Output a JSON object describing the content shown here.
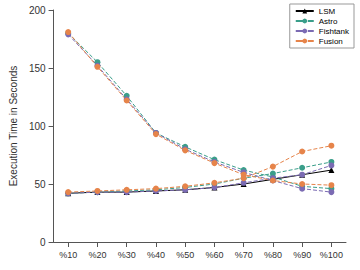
{
  "chart_data": {
    "type": "line",
    "y_label": "Execution Time in Seconds",
    "categories": [
      "%10",
      "%20",
      "%30",
      "%40",
      "%50",
      "%60",
      "%70",
      "%80",
      "%90",
      "%100"
    ],
    "series": [
      {
        "name": "LSM",
        "color": "#000000",
        "marker": "triangle",
        "line_style": "solid",
        "values": [
          42,
          43,
          43,
          44,
          45,
          47,
          50,
          54,
          58,
          62
        ]
      },
      {
        "name": "Astro",
        "color": "#3a9e8a",
        "marker": "circle",
        "line_style": "dashed",
        "values": [
          180,
          155,
          126,
          94,
          82,
          71,
          62,
          56,
          48,
          46
        ]
      },
      {
        "name": "Astro",
        "color": "#3a9e8a",
        "marker": "circle",
        "line_style": "dashed",
        "values": [
          42,
          43,
          44,
          45,
          47,
          50,
          55,
          59,
          64,
          69
        ]
      },
      {
        "name": "Fishtank",
        "color": "#7b6bb3",
        "marker": "circle",
        "line_style": "dashed",
        "values": [
          179,
          152,
          123,
          94,
          80,
          69,
          60,
          53,
          46,
          43
        ]
      },
      {
        "name": "Fishtank",
        "color": "#7b6bb3",
        "marker": "circle",
        "line_style": "dashed",
        "values": [
          42,
          43,
          43,
          44,
          45,
          47,
          51,
          55,
          58,
          66
        ]
      },
      {
        "name": "Fusion",
        "color": "#e6844a",
        "marker": "circle",
        "line_style": "dashed",
        "values": [
          181,
          151,
          122,
          93,
          79,
          68,
          58,
          53,
          50,
          49
        ]
      },
      {
        "name": "Fusion",
        "color": "#e6844a",
        "marker": "circle",
        "line_style": "dashed",
        "values": [
          43,
          44,
          45,
          46,
          48,
          51,
          55,
          65,
          78,
          83
        ]
      }
    ],
    "ylim": [
      0,
      200
    ],
    "yticks": [
      0,
      50,
      100,
      150,
      200
    ],
    "grid": false,
    "legend": "top-right"
  }
}
